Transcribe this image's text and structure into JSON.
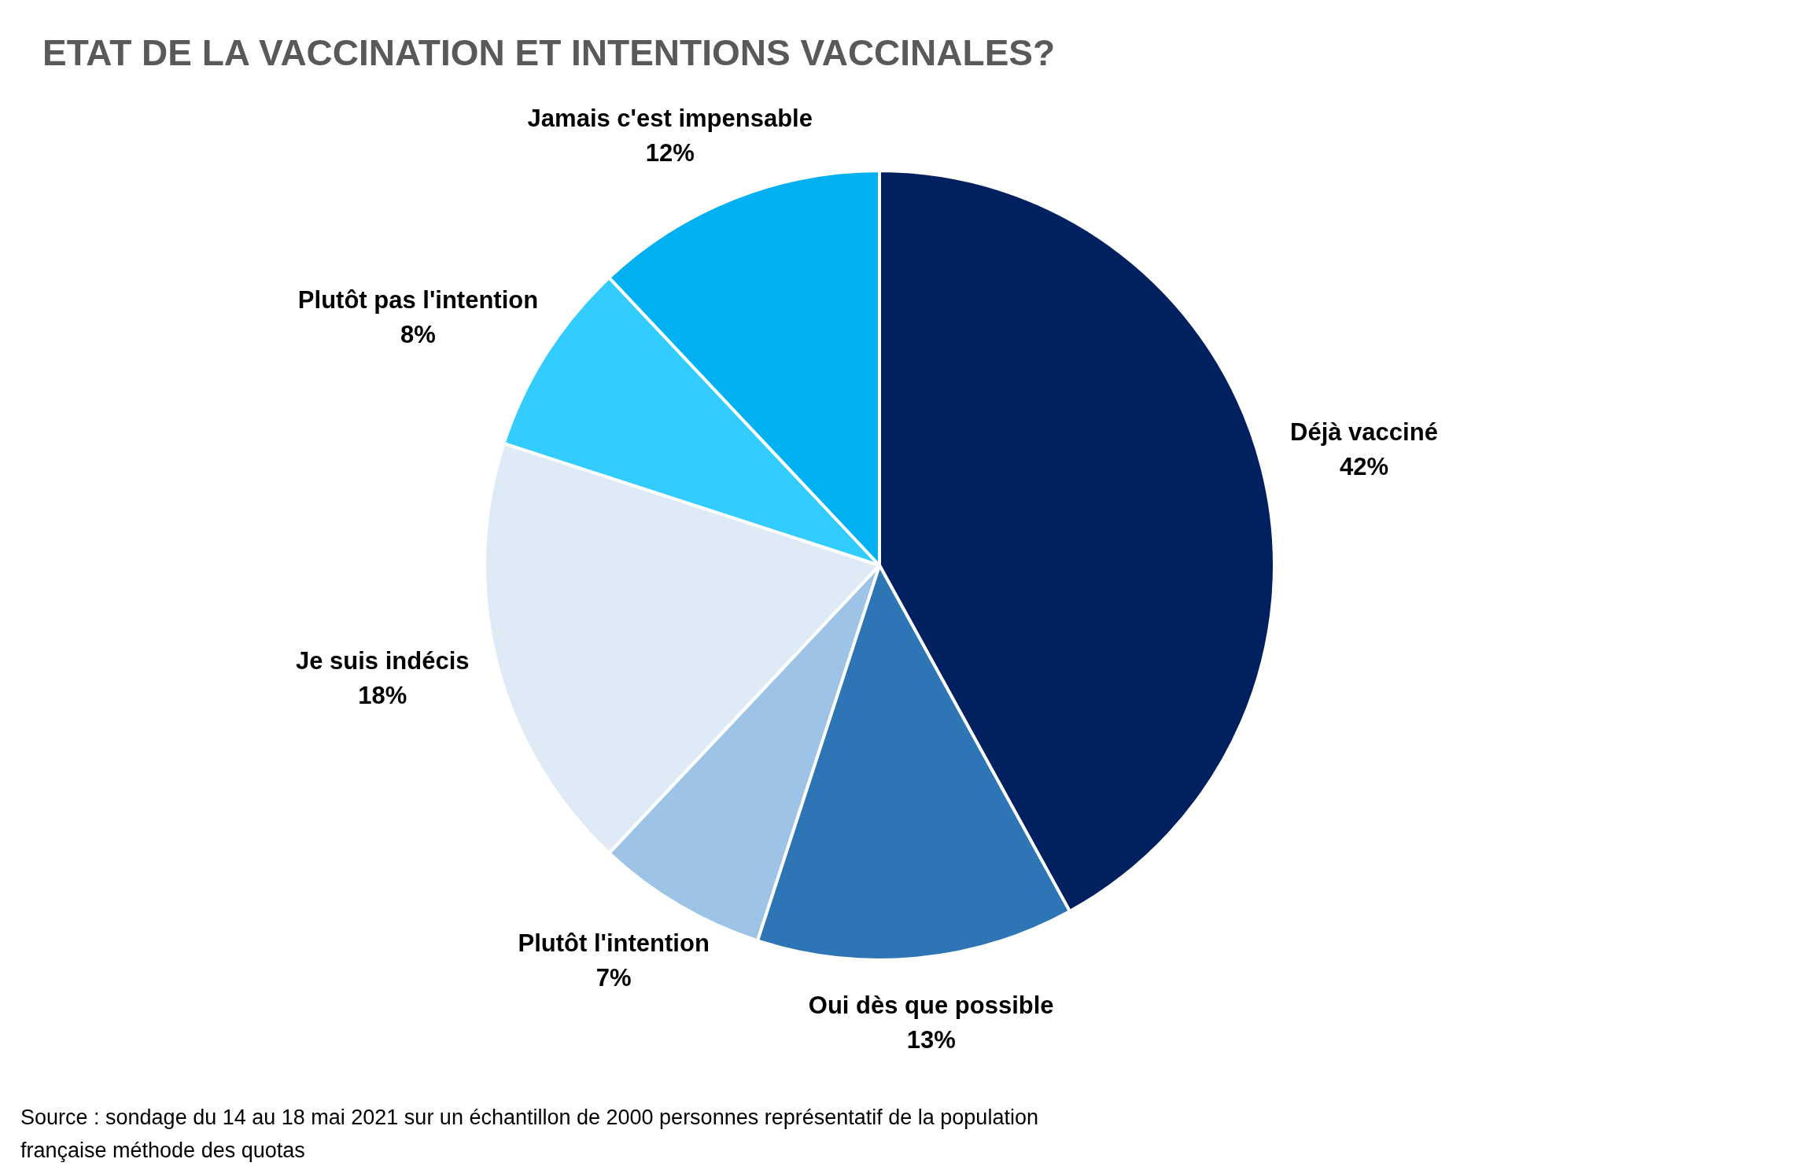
{
  "chart_data": {
    "type": "pie",
    "title": "ETAT DE LA VACCINATION ET INTENTIONS VACCINALES?",
    "categories": [
      "Déjà vacciné",
      "Oui dès que possible",
      "Plutôt l'intention",
      "Je suis indécis",
      "Plutôt pas l'intention",
      "Jamais c'est impensable"
    ],
    "values": [
      42,
      13,
      7,
      18,
      8,
      12
    ],
    "value_labels": [
      "42%",
      "13%",
      "7%",
      "18%",
      "8%",
      "12%"
    ],
    "colors": [
      "#002060",
      "#2e75b6",
      "#9dc3e6",
      "#deebf7",
      "#33ccff",
      "#00b0f0"
    ],
    "annotations": [
      "Source : sondage du 14 au 18 mai 2021 sur un échantillon de 2000 personnes représentatif de la population française méthode des quotas"
    ]
  }
}
